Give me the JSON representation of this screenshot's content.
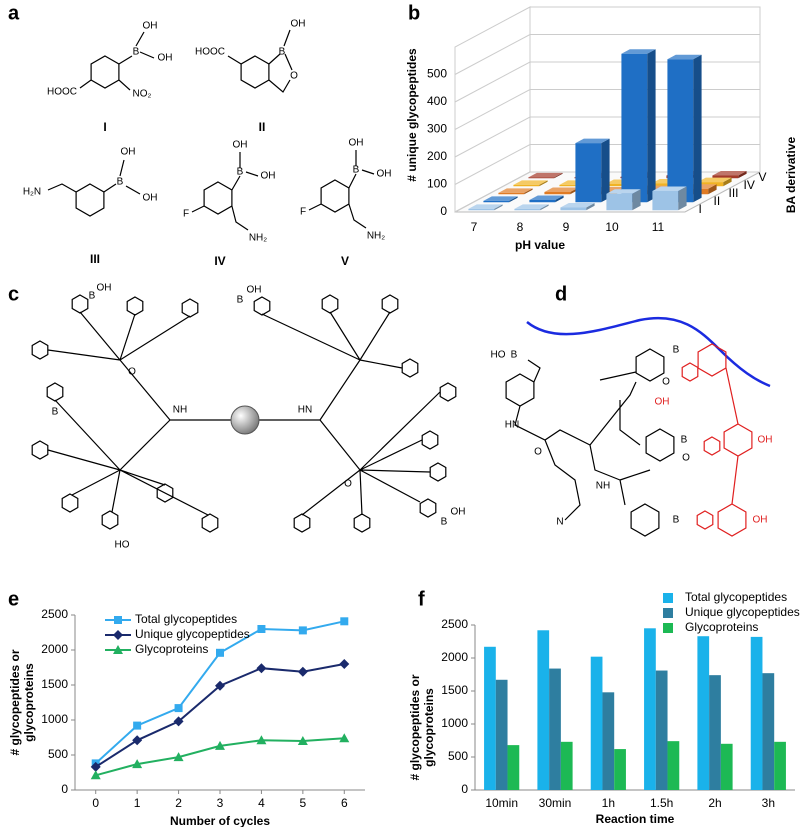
{
  "panel_labels": [
    "a",
    "b",
    "c",
    "d",
    "e",
    "f"
  ],
  "structures": {
    "a": [
      {
        "label": "I",
        "atoms": [
          "B",
          "OH",
          "OH",
          "HOOC",
          "NO₂"
        ]
      },
      {
        "label": "II",
        "atoms": [
          "B",
          "OH",
          "O",
          "HOOC"
        ]
      },
      {
        "label": "III",
        "atoms": [
          "B",
          "OH",
          "OH",
          "H₂N"
        ]
      },
      {
        "label": "IV",
        "atoms": [
          "B",
          "OH",
          "OH",
          "F",
          "NH₂"
        ]
      },
      {
        "label": "V",
        "atoms": [
          "B",
          "OH",
          "OH",
          "F",
          "NH₂"
        ]
      }
    ],
    "c": {
      "atoms": [
        "B",
        "OH",
        "B",
        "HO",
        "B",
        "OH",
        "B",
        "OH",
        "NH",
        "HN",
        "O",
        "O"
      ]
    },
    "d": {
      "atoms": [
        "HO",
        "B",
        "HN",
        "NH",
        "O",
        "N",
        "B",
        "B",
        "B",
        "OH",
        "OH",
        "OH",
        "O",
        "O"
      ]
    }
  },
  "chart_data": [
    {
      "type": "bar3d",
      "y_label": "# unique glycopeptides",
      "x_label": "pH value",
      "z_label": "BA derivative",
      "categories": [
        "7",
        "8",
        "9",
        "10",
        "11"
      ],
      "series": [
        {
          "name": "I",
          "color": "#9dc3e6",
          "values": [
            5,
            5,
            10,
            60,
            70
          ]
        },
        {
          "name": "II",
          "color": "#1f6fc5",
          "values": [
            5,
            8,
            215,
            540,
            520
          ]
        },
        {
          "name": "III",
          "color": "#e07b24",
          "values": [
            5,
            8,
            10,
            15,
            20
          ]
        },
        {
          "name": "IV",
          "color": "#f0b323",
          "values": [
            5,
            5,
            8,
            10,
            15
          ]
        },
        {
          "name": "V",
          "color": "#a33a2a",
          "values": [
            3,
            3,
            5,
            10,
            10
          ]
        }
      ],
      "ylim": [
        0,
        600
      ],
      "yticks": [
        0,
        100,
        200,
        300,
        400,
        500
      ],
      "grid": true
    },
    {
      "type": "line",
      "x_label": "Number of cycles",
      "y_label": [
        "# glycopeptides or",
        "glycoproteins"
      ],
      "x": [
        0,
        1,
        2,
        3,
        4,
        5,
        6
      ],
      "xlim": [
        -0.5,
        6.5
      ],
      "xticks": [
        0,
        1,
        2,
        3,
        4,
        5,
        6
      ],
      "ylim": [
        0,
        2500
      ],
      "yticks": [
        0,
        500,
        1000,
        1500,
        2000,
        2500
      ],
      "grid": false,
      "legend": "upper-left",
      "series": [
        {
          "name": "Total glycopeptides",
          "color": "#33aaee",
          "marker": "square",
          "values": [
            380,
            920,
            1170,
            1960,
            2300,
            2280,
            2410
          ]
        },
        {
          "name": "Unique glycopeptides",
          "color": "#1a2a6c",
          "marker": "diamond",
          "values": [
            330,
            710,
            980,
            1490,
            1740,
            1690,
            1800
          ]
        },
        {
          "name": "Glycoproteins",
          "color": "#22b060",
          "marker": "triangle",
          "values": [
            210,
            370,
            470,
            630,
            710,
            700,
            740
          ]
        }
      ]
    },
    {
      "type": "bar",
      "x_label": "Reaction time",
      "y_label": [
        "# glycopeptides or",
        "glycoproteins"
      ],
      "categories": [
        "10min",
        "30min",
        "1h",
        "1.5h",
        "2h",
        "3h"
      ],
      "ylim": [
        0,
        2500
      ],
      "yticks": [
        0,
        500,
        1000,
        1500,
        2000,
        2500
      ],
      "grid": false,
      "legend": "upper-right",
      "series": [
        {
          "name": "Total glycopeptides",
          "color": "#1ab2ea",
          "values": [
            2170,
            2420,
            2020,
            2450,
            2330,
            2320
          ]
        },
        {
          "name": "Unique glycopeptides",
          "color": "#2e7ea0",
          "values": [
            1670,
            1840,
            1480,
            1810,
            1740,
            1770
          ]
        },
        {
          "name": "Glycoproteins",
          "color": "#1db954",
          "values": [
            680,
            730,
            620,
            740,
            700,
            730
          ]
        }
      ]
    }
  ]
}
